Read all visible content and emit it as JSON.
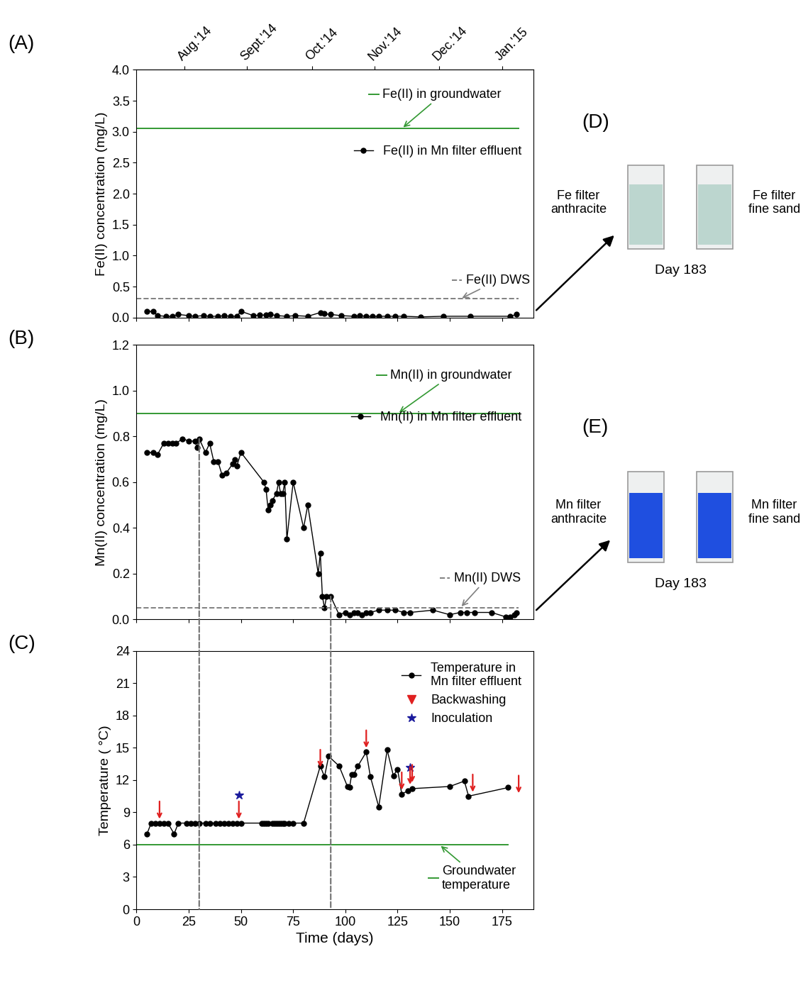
{
  "chart_data": [
    {
      "type": "line",
      "panel_label": "(A)",
      "y_label": "Fe(II) concentration (mg/L)",
      "xlim": [
        0,
        190
      ],
      "xticks": [
        0,
        25,
        50,
        75,
        100,
        125,
        150,
        175
      ],
      "ylim": [
        0.0,
        4.0
      ],
      "yticks": [
        0.0,
        0.5,
        1.0,
        1.5,
        2.0,
        2.5,
        3.0,
        3.5,
        4.0
      ],
      "tick_labels": "y",
      "legend": "upper right",
      "top_xticks": [
        {
          "value": 23,
          "label": "Aug.'14"
        },
        {
          "value": 53,
          "label": "Sept.'14"
        },
        {
          "value": 84,
          "label": "Oct.'14"
        },
        {
          "value": 114,
          "label": "Nov.'14"
        },
        {
          "value": 145,
          "label": "Dec.'14"
        },
        {
          "value": 175,
          "label": "Jan.'15"
        }
      ],
      "series": [
        {
          "name": "Fe(II) in Mn filter effluent",
          "color": "#000000",
          "marker": "o",
          "line_style": "solid",
          "x": [
            5,
            8,
            10,
            14,
            17,
            20,
            25,
            28,
            32,
            35,
            39,
            42,
            45,
            48,
            50,
            56,
            59,
            62,
            64,
            67,
            72,
            76,
            82,
            88,
            90,
            93,
            98,
            104,
            107,
            110,
            113,
            116,
            120,
            124,
            128,
            136,
            147,
            160,
            179,
            182
          ],
          "values": [
            0.1,
            0.1,
            0.03,
            0.02,
            0.02,
            0.05,
            0.03,
            0.02,
            0.03,
            0.02,
            0.02,
            0.03,
            0.02,
            0.02,
            0.1,
            0.03,
            0.04,
            0.04,
            0.05,
            0.03,
            0.02,
            0.03,
            0.02,
            0.08,
            0.06,
            0.05,
            0.03,
            0.02,
            0.03,
            0.02,
            0.02,
            0.02,
            0.02,
            0.02,
            0.02,
            0.01,
            0.02,
            0.02,
            0.02,
            0.05
          ]
        }
      ],
      "reference_lines": [
        {
          "name": "Fe(II) in groundwater",
          "color": "#339933",
          "line_style": "solid",
          "value": 3.05,
          "x": [
            0,
            183
          ]
        },
        {
          "name": "Fe(II) DWS",
          "color": "#808080",
          "line_style": "dashed",
          "value": 0.3,
          "x": [
            0,
            183
          ]
        }
      ]
    },
    {
      "type": "line",
      "panel_label": "(B)",
      "y_label": "Mn(II) concentration (mg/L)",
      "xlim": [
        0,
        190
      ],
      "xticks": [
        0,
        25,
        50,
        75,
        100,
        125,
        150,
        175
      ],
      "ylim": [
        0.0,
        1.2
      ],
      "yticks": [
        0.0,
        0.2,
        0.4,
        0.6,
        0.8,
        1.0,
        1.2
      ],
      "tick_labels": "y",
      "legend": "upper right",
      "series": [
        {
          "name": "Mn(II) in Mn filter effluent",
          "color": "#000000",
          "marker": "o",
          "line_style": "solid",
          "x": [
            5,
            8,
            10,
            13,
            15,
            17,
            19,
            22,
            25,
            28,
            29,
            30,
            33,
            35,
            37,
            39,
            41,
            43,
            46,
            47,
            48,
            50,
            61,
            62,
            63,
            64,
            65,
            67,
            68,
            69,
            70,
            71,
            72,
            75,
            80,
            82,
            87,
            88,
            89,
            90,
            91,
            93,
            97,
            100,
            102,
            104,
            106,
            108,
            110,
            112,
            116,
            120,
            124,
            128,
            131,
            142,
            150,
            155,
            158,
            162,
            170,
            177,
            179,
            181,
            182
          ],
          "values": [
            0.73,
            0.73,
            0.72,
            0.77,
            0.77,
            0.77,
            0.77,
            0.79,
            0.78,
            0.78,
            0.75,
            0.79,
            0.73,
            0.77,
            0.69,
            0.69,
            0.63,
            0.64,
            0.68,
            0.7,
            0.67,
            0.73,
            0.6,
            0.57,
            0.48,
            0.5,
            0.52,
            0.55,
            0.6,
            0.55,
            0.55,
            0.6,
            0.35,
            0.6,
            0.4,
            0.5,
            0.2,
            0.29,
            0.1,
            0.05,
            0.1,
            0.1,
            0.02,
            0.03,
            0.02,
            0.03,
            0.03,
            0.02,
            0.03,
            0.03,
            0.04,
            0.04,
            0.04,
            0.03,
            0.03,
            0.04,
            0.02,
            0.03,
            0.03,
            0.03,
            0.03,
            0.01,
            0.01,
            0.02,
            0.03
          ]
        }
      ],
      "reference_lines": [
        {
          "name": "Mn(II) in groundwater",
          "color": "#339933",
          "line_style": "solid",
          "value": 0.9,
          "x": [
            0,
            183
          ]
        },
        {
          "name": "Mn(II) DWS",
          "color": "#808080",
          "line_style": "dashed",
          "value": 0.05,
          "x": [
            0,
            183
          ]
        }
      ]
    },
    {
      "type": "line",
      "panel_label": "(C)",
      "y_label": "Temperature ( °C)",
      "x_label": "Time (days)",
      "xlim": [
        0,
        190
      ],
      "xticks": [
        0,
        25,
        50,
        75,
        100,
        125,
        150,
        175
      ],
      "ylim": [
        0,
        24
      ],
      "yticks": [
        0,
        3,
        6,
        9,
        12,
        15,
        18,
        21,
        24
      ],
      "legend": "upper right",
      "series": [
        {
          "name": "Temperature in\nMn filter effluent",
          "color": "#000000",
          "marker": "o",
          "line_style": "solid",
          "x": [
            5,
            7,
            9,
            11,
            13,
            15,
            18,
            20,
            24,
            26,
            28,
            30,
            33,
            35,
            38,
            40,
            42,
            44,
            46,
            48,
            50,
            60,
            61,
            62,
            63,
            65,
            66,
            67,
            68,
            69,
            70,
            71,
            73,
            75,
            80,
            88,
            90,
            92,
            97,
            101,
            102,
            103,
            104,
            106,
            110,
            112,
            116,
            120,
            123,
            125,
            127,
            130,
            132,
            150,
            157,
            159,
            178
          ],
          "values": [
            7,
            8,
            8,
            8,
            8,
            8,
            7,
            8,
            8,
            8,
            8,
            8,
            8,
            8,
            8,
            8,
            8,
            8,
            8,
            8,
            8,
            8,
            8,
            8,
            8,
            8,
            8,
            8,
            8,
            8,
            8,
            8,
            8,
            8,
            8,
            13.3,
            12.3,
            14.2,
            13.3,
            11.4,
            11.3,
            12.5,
            12.5,
            13.3,
            14.6,
            12.3,
            9.5,
            14.8,
            12.4,
            13,
            10.7,
            11,
            11.2,
            11.4,
            11.9,
            10.5,
            11.3
          ]
        }
      ],
      "events": [
        {
          "name": "Backwashing",
          "color": "#e02020",
          "marker": "v",
          "x": [
            11,
            49,
            88,
            110,
            127,
            131,
            132,
            161,
            183
          ],
          "values": [
            8.2,
            8.2,
            13.0,
            14.8,
            10.9,
            11.4,
            11.6,
            10.7,
            10.6
          ]
        },
        {
          "name": "Inoculation",
          "color": "#1a1a9c",
          "marker": "*",
          "x": [
            49,
            131
          ],
          "values": [
            10.6,
            13.2
          ]
        }
      ],
      "reference_lines": [
        {
          "name": "Groundwater\ntemperature",
          "color": "#339933",
          "line_style": "solid",
          "value": 6,
          "x": [
            0,
            178
          ]
        }
      ]
    }
  ],
  "reference_days": [
    30,
    93
  ],
  "photos": [
    {
      "panel_label": "(D)",
      "left_label": "Fe filter\nanthracite",
      "right_label": "Fe filter\nfine sand",
      "caption": "Day 183",
      "color": "#bcd6cf"
    },
    {
      "panel_label": "(E)",
      "left_label": "Mn filter\nanthracite",
      "right_label": "Mn filter\nfine sand",
      "caption": "Day 183",
      "color": "#1f4fe0"
    }
  ]
}
